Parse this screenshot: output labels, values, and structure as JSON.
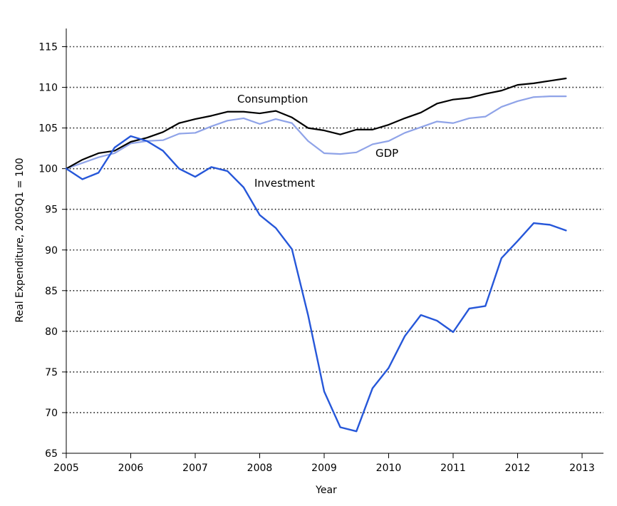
{
  "chart_data": {
    "type": "line",
    "xlabel": "Year",
    "ylabel": "Real Expenditure, 2005Q1 = 100",
    "xlim": [
      2005,
      2013
    ],
    "ylim": [
      65,
      117
    ],
    "x_ticks": [
      "2005",
      "2006",
      "2007",
      "2008",
      "2009",
      "2010",
      "2011",
      "2012",
      "2013"
    ],
    "y_ticks": [
      "65",
      "70",
      "75",
      "80",
      "85",
      "90",
      "95",
      "100",
      "105",
      "110",
      "115"
    ],
    "grid": "horizontal-dotted",
    "x": [
      2005.0,
      2005.25,
      2005.5,
      2005.75,
      2006.0,
      2006.25,
      2006.5,
      2006.75,
      2007.0,
      2007.25,
      2007.5,
      2007.75,
      2008.0,
      2008.25,
      2008.5,
      2008.75,
      2009.0,
      2009.25,
      2009.5,
      2009.75,
      2010.0,
      2010.25,
      2010.5,
      2010.75,
      2011.0,
      2011.25,
      2011.5,
      2011.75,
      2012.0,
      2012.25,
      2012.5,
      2012.75
    ],
    "series": [
      {
        "name": "Consumption",
        "color": "#000000",
        "values": [
          100.0,
          101.1,
          101.9,
          102.2,
          103.3,
          103.8,
          104.5,
          105.6,
          106.1,
          106.5,
          107.0,
          107.0,
          106.8,
          107.1,
          106.3,
          105.0,
          104.7,
          104.2,
          104.8,
          104.8,
          105.4,
          106.2,
          106.9,
          108.0,
          108.5,
          108.7,
          109.2,
          109.6,
          110.3,
          110.5,
          110.8,
          111.1
        ]
      },
      {
        "name": "GDP",
        "color": "#8fa3e8",
        "values": [
          100.0,
          100.7,
          101.4,
          101.9,
          103.1,
          103.4,
          103.5,
          104.3,
          104.4,
          105.2,
          105.9,
          106.2,
          105.5,
          106.1,
          105.6,
          103.4,
          101.9,
          101.8,
          102.0,
          103.0,
          103.4,
          104.4,
          105.1,
          105.8,
          105.6,
          106.2,
          106.4,
          107.6,
          108.3,
          108.8,
          108.9,
          108.9
        ]
      },
      {
        "name": "Investment",
        "color": "#2657d9",
        "values": [
          100.0,
          98.7,
          99.5,
          102.6,
          104.0,
          103.4,
          102.2,
          100.0,
          99.0,
          100.2,
          99.7,
          97.7,
          94.3,
          92.7,
          90.1,
          82.0,
          72.6,
          68.2,
          67.7,
          73.0,
          75.5,
          79.4,
          82.0,
          81.3,
          79.9,
          82.8,
          83.1,
          89.0,
          91.1,
          93.3,
          93.1,
          92.4
        ]
      }
    ]
  }
}
